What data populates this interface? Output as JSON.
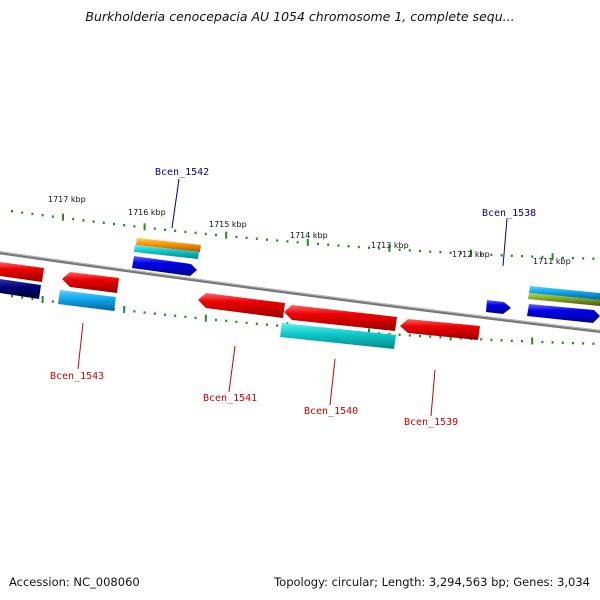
{
  "title": "Burkholderia cenocepacia AU 1054 chromosome 1, complete sequ...",
  "footer": {
    "accession": "Accession: NC_008060",
    "summary": "Topology: circular; Length: 3,294,563 bp; Genes: 3,034"
  },
  "kbp_labels": [
    "1717 kbp",
    "1716 kbp",
    "1715 kbp",
    "1714 kbp",
    "1713 kbp",
    "1712 kbp",
    "1711 kbp"
  ],
  "gene_labels": [
    {
      "text": "Bcen_1542",
      "color": "#00008b"
    },
    {
      "text": "Bcen_1538",
      "color": "#00008b"
    },
    {
      "text": "Bcen_1543",
      "color": "#cc0000"
    },
    {
      "text": "Bcen_1541",
      "color": "#cc0000"
    },
    {
      "text": "Bcen_1540",
      "color": "#cc0000"
    },
    {
      "text": "Bcen_1539",
      "color": "#cc0000"
    }
  ],
  "colors": {
    "red_gene": "#ee1111",
    "blue_gene": "#1111ee",
    "cyan_gene": "#22cccc",
    "light_blue_gene": "#22aaee",
    "navy_gene": "#000066",
    "orange_gene": "#ff9900",
    "olive_gene": "#88aa22",
    "backbone": "#888888",
    "tick_marks": "#228b22"
  }
}
